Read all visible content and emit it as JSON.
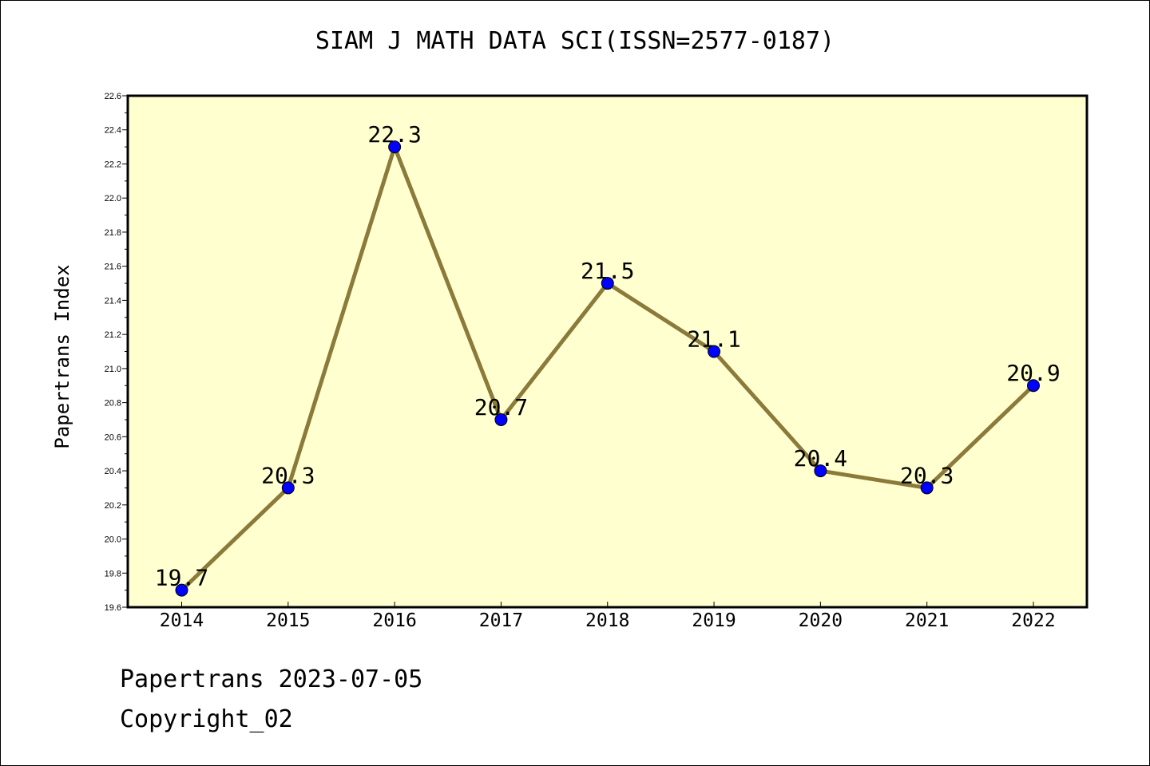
{
  "chart_data": {
    "type": "line",
    "title": "SIAM J MATH DATA SCI(ISSN=2577-0187)",
    "ylabel": "Papertrans Index",
    "xlabel": "",
    "categories": [
      "2014",
      "2015",
      "2016",
      "2017",
      "2018",
      "2019",
      "2020",
      "2021",
      "2022"
    ],
    "values": [
      19.7,
      20.3,
      22.3,
      20.7,
      21.5,
      21.1,
      20.4,
      20.3,
      20.9
    ],
    "data_labels": [
      "19.7",
      "20.3",
      "22.3",
      "20.7",
      "21.5",
      "21.1",
      "20.4",
      "20.3",
      "20.9"
    ],
    "ylim": [
      19.6,
      22.6
    ],
    "yticks": [
      "19.6",
      "19.8",
      "20.0",
      "20.2",
      "20.4",
      "20.6",
      "20.8",
      "21.0",
      "21.2",
      "21.4",
      "21.6",
      "21.8",
      "22.0",
      "22.2",
      "22.4",
      "22.6"
    ],
    "grid": false,
    "line_color": "#8b7a3a",
    "marker_color": "#0000ff",
    "plot_background": "#ffffd0"
  },
  "footer": {
    "line1": "Papertrans 2023-07-05",
    "line2": "Copyright_02"
  }
}
